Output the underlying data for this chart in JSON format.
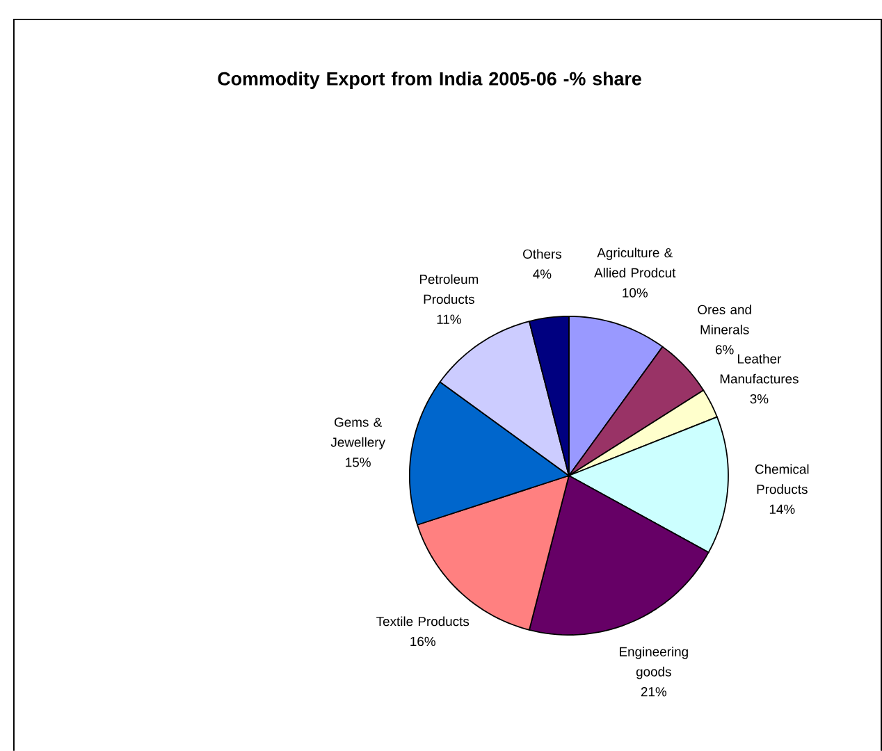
{
  "chart_data": {
    "type": "pie",
    "title": "Commodity Export from India 2005-06 -% share",
    "categories": [
      "Agriculture & Allied Prodcut",
      "Ores and Minerals",
      "Leather Manufactures",
      "Chemical Products",
      "Engineering goods",
      "Textile Products",
      "Gems & Jewellery",
      "Petroleum Products",
      "Others"
    ],
    "values": [
      10,
      6,
      3,
      14,
      21,
      16,
      15,
      11,
      4
    ],
    "value_labels": [
      "10%",
      "6%",
      "3%",
      "14%",
      "21%",
      "16%",
      "15%",
      "11%",
      "4%"
    ],
    "colors": [
      "#9999ff",
      "#993366",
      "#ffffcc",
      "#ccffff",
      "#660066",
      "#ff8080",
      "#0066cc",
      "#ccccff",
      "#000080"
    ]
  }
}
